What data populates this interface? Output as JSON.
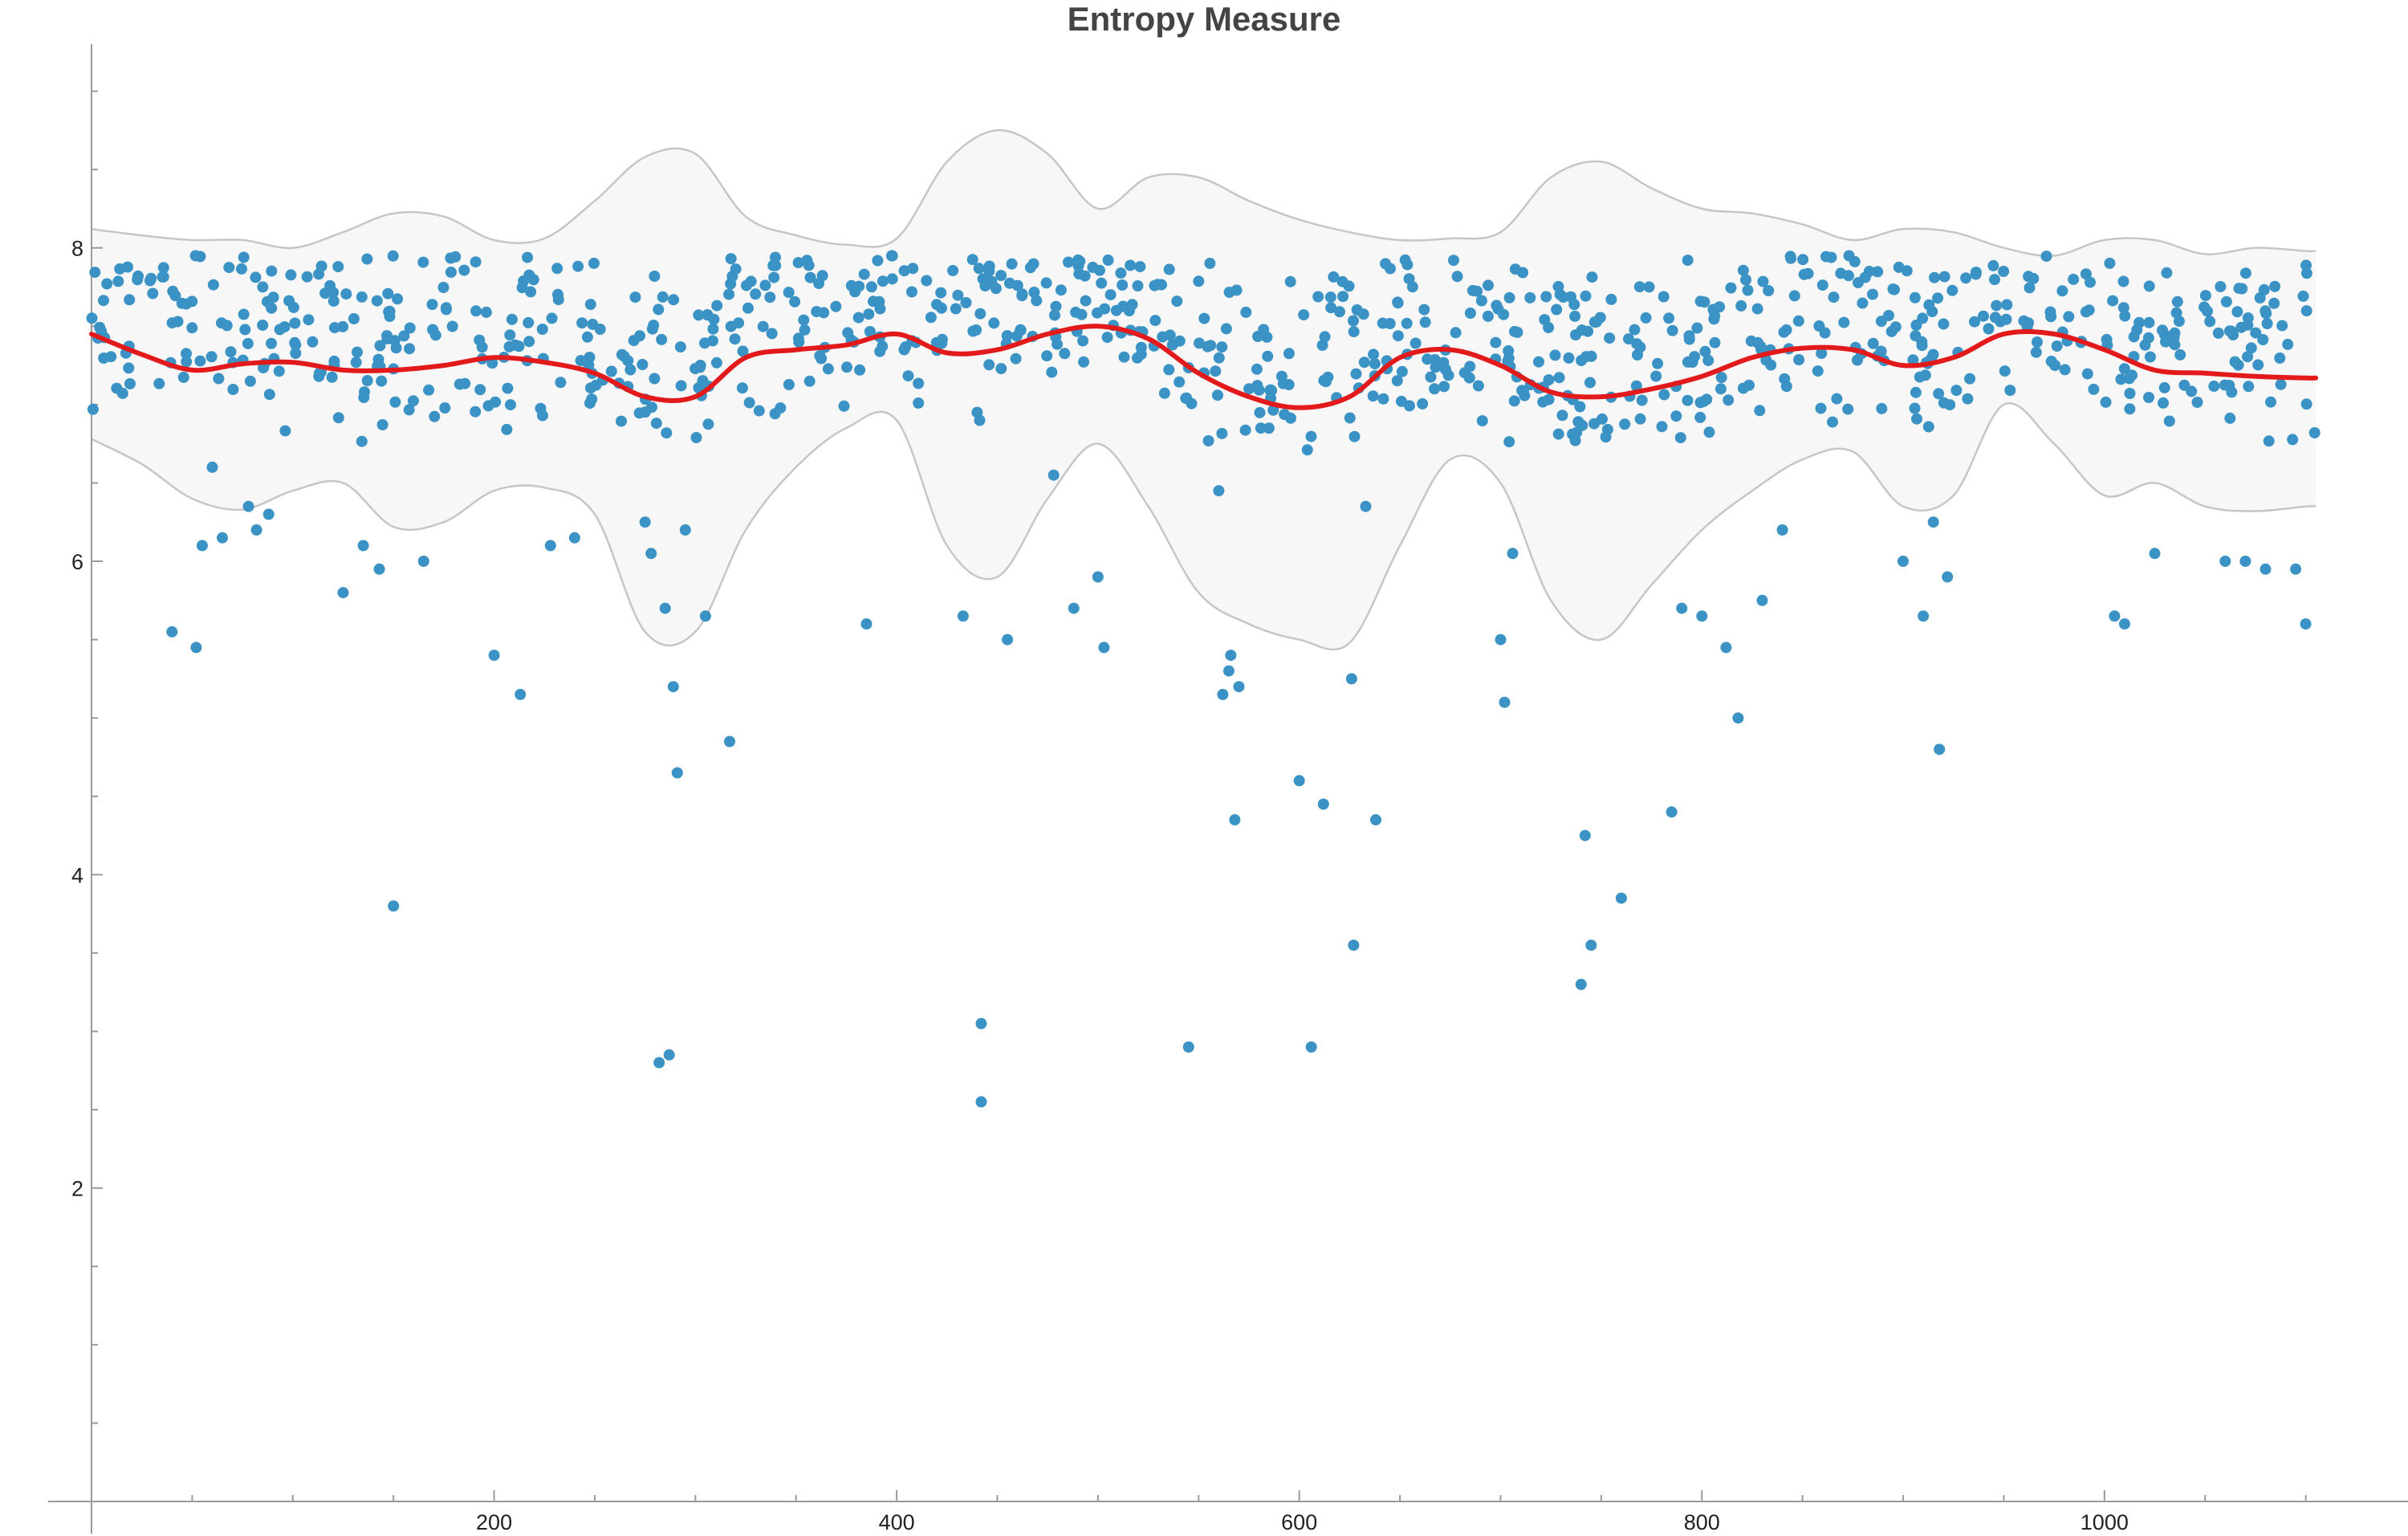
{
  "chart_data": {
    "type": "scatter",
    "title": "Entropy Measure",
    "xlabel": "",
    "ylabel": "",
    "xlim": [
      0,
      1150
    ],
    "ylim": [
      0,
      9.3
    ],
    "x_ticks": [
      200,
      400,
      600,
      800,
      1000
    ],
    "y_ticks": [
      2,
      4,
      6,
      8
    ],
    "x_minor_step": 50,
    "y_minor_step": 0.5,
    "grid": false,
    "legend": "none",
    "colors": {
      "points": "#3a93c4",
      "trend": "#e31a1c",
      "band_fill": "#f7f7f7",
      "band_stroke": "#c6c6c6",
      "axis": "#9a9a9a",
      "title": "#444444"
    },
    "point_count": 1000,
    "points_x_range": [
      0,
      1105
    ],
    "points_main_range": [
      6.7,
      7.95
    ],
    "outliers": [
      [
        40,
        5.55
      ],
      [
        52,
        5.45
      ],
      [
        55,
        6.1
      ],
      [
        60,
        6.6
      ],
      [
        65,
        6.15
      ],
      [
        78,
        6.35
      ],
      [
        82,
        6.2
      ],
      [
        88,
        6.3
      ],
      [
        125,
        5.8
      ],
      [
        135,
        6.1
      ],
      [
        143,
        5.95
      ],
      [
        150,
        3.8
      ],
      [
        165,
        6.0
      ],
      [
        200,
        5.4
      ],
      [
        213,
        5.15
      ],
      [
        228,
        6.1
      ],
      [
        240,
        6.15
      ],
      [
        275,
        6.25
      ],
      [
        278,
        6.05
      ],
      [
        282,
        2.8
      ],
      [
        285,
        5.7
      ],
      [
        287,
        2.85
      ],
      [
        289,
        5.2
      ],
      [
        291,
        4.65
      ],
      [
        295,
        6.2
      ],
      [
        305,
        5.65
      ],
      [
        317,
        4.85
      ],
      [
        385,
        5.6
      ],
      [
        433,
        5.65
      ],
      [
        440,
        6.95
      ],
      [
        442,
        3.05
      ],
      [
        442,
        2.55
      ],
      [
        455,
        5.5
      ],
      [
        478,
        6.55
      ],
      [
        488,
        5.7
      ],
      [
        500,
        5.9
      ],
      [
        503,
        5.45
      ],
      [
        545,
        2.9
      ],
      [
        560,
        6.45
      ],
      [
        562,
        5.15
      ],
      [
        565,
        5.3
      ],
      [
        566,
        5.4
      ],
      [
        568,
        4.35
      ],
      [
        570,
        5.2
      ],
      [
        600,
        4.6
      ],
      [
        606,
        2.9
      ],
      [
        612,
        4.45
      ],
      [
        626,
        5.25
      ],
      [
        627,
        3.55
      ],
      [
        633,
        6.35
      ],
      [
        638,
        4.35
      ],
      [
        700,
        5.5
      ],
      [
        702,
        5.1
      ],
      [
        706,
        6.05
      ],
      [
        740,
        3.3
      ],
      [
        742,
        4.25
      ],
      [
        745,
        3.55
      ],
      [
        760,
        3.85
      ],
      [
        785,
        4.4
      ],
      [
        790,
        5.7
      ],
      [
        800,
        5.65
      ],
      [
        812,
        5.45
      ],
      [
        818,
        5.0
      ],
      [
        830,
        5.75
      ],
      [
        840,
        6.2
      ],
      [
        900,
        6.0
      ],
      [
        910,
        5.65
      ],
      [
        915,
        6.25
      ],
      [
        918,
        4.8
      ],
      [
        922,
        5.9
      ],
      [
        1005,
        5.65
      ],
      [
        1010,
        5.6
      ],
      [
        1025,
        6.05
      ],
      [
        1060,
        6.0
      ],
      [
        1070,
        6.0
      ],
      [
        1080,
        5.95
      ],
      [
        1095,
        5.95
      ],
      [
        1100,
        5.6
      ]
    ],
    "trend": {
      "name": "",
      "x": [
        0,
        25,
        50,
        75,
        100,
        125,
        150,
        175,
        200,
        225,
        250,
        275,
        300,
        325,
        350,
        375,
        400,
        425,
        450,
        475,
        500,
        525,
        550,
        575,
        600,
        625,
        650,
        675,
        700,
        725,
        750,
        775,
        800,
        825,
        850,
        875,
        900,
        925,
        950,
        975,
        1000,
        1025,
        1050,
        1075,
        1100,
        1105
      ],
      "y": [
        7.45,
        7.32,
        7.22,
        7.26,
        7.27,
        7.22,
        7.22,
        7.25,
        7.3,
        7.27,
        7.2,
        7.05,
        7.05,
        7.3,
        7.35,
        7.38,
        7.45,
        7.33,
        7.35,
        7.45,
        7.5,
        7.42,
        7.2,
        7.05,
        6.98,
        7.05,
        7.3,
        7.35,
        7.25,
        7.08,
        7.05,
        7.1,
        7.18,
        7.3,
        7.36,
        7.35,
        7.25,
        7.3,
        7.45,
        7.45,
        7.35,
        7.22,
        7.2,
        7.18,
        7.17,
        7.17
      ]
    },
    "band": {
      "x": [
        0,
        25,
        50,
        75,
        100,
        125,
        150,
        175,
        200,
        225,
        250,
        275,
        300,
        325,
        350,
        375,
        400,
        425,
        450,
        475,
        500,
        525,
        550,
        575,
        600,
        625,
        650,
        675,
        700,
        725,
        750,
        775,
        800,
        825,
        850,
        875,
        900,
        925,
        950,
        975,
        1000,
        1025,
        1050,
        1075,
        1100,
        1105
      ],
      "upper": [
        8.12,
        8.08,
        8.05,
        8.05,
        8.0,
        8.1,
        8.22,
        8.2,
        8.05,
        8.06,
        8.3,
        8.58,
        8.6,
        8.2,
        8.08,
        8.02,
        8.06,
        8.55,
        8.75,
        8.6,
        8.25,
        8.45,
        8.45,
        8.3,
        8.18,
        8.1,
        8.05,
        8.06,
        8.1,
        8.45,
        8.55,
        8.38,
        8.25,
        8.22,
        8.15,
        8.05,
        8.12,
        8.1,
        8.0,
        7.95,
        8.05,
        8.05,
        7.96,
        8.0,
        7.98,
        7.98
      ],
      "lower": [
        6.78,
        6.62,
        6.4,
        6.33,
        6.45,
        6.5,
        6.22,
        6.25,
        6.45,
        6.47,
        6.3,
        5.55,
        5.55,
        6.2,
        6.6,
        6.85,
        6.9,
        6.1,
        5.9,
        6.4,
        6.75,
        6.35,
        5.8,
        5.6,
        5.5,
        5.48,
        6.1,
        6.65,
        6.5,
        5.75,
        5.5,
        5.85,
        6.2,
        6.45,
        6.65,
        6.7,
        6.35,
        6.42,
        7.0,
        6.75,
        6.42,
        6.5,
        6.35,
        6.32,
        6.35,
        6.35
      ]
    }
  }
}
